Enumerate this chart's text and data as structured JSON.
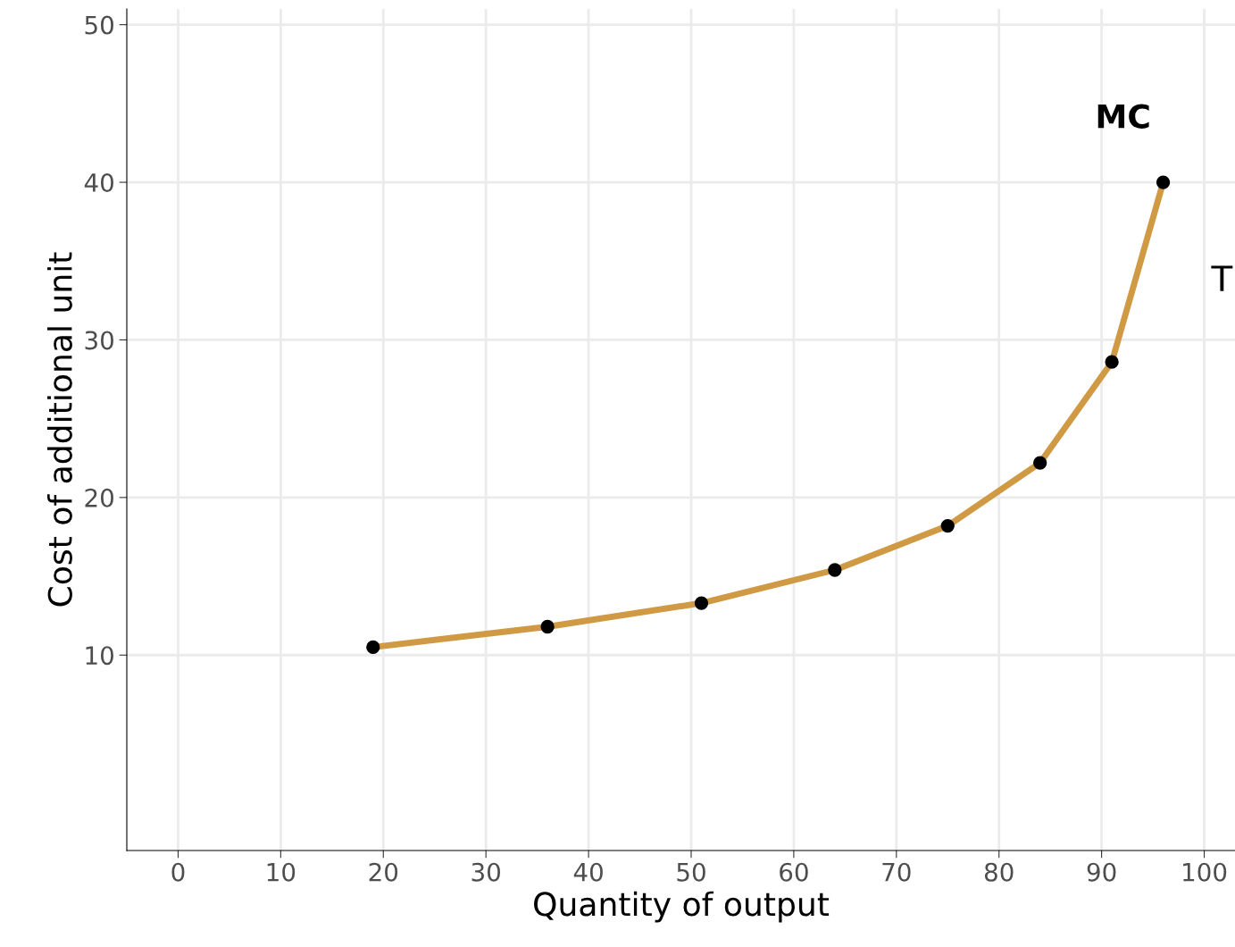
{
  "chart_data": {
    "type": "line",
    "xlabel": "Quantity of output",
    "ylabel": "Cost of additional unit",
    "x": [
      19,
      36,
      51,
      64,
      75,
      84,
      91,
      96
    ],
    "series": [
      {
        "color": "#d09a45",
        "values": [
          10.5,
          11.8,
          13.3,
          15.4,
          18.2,
          22.2,
          28.6,
          40
        ]
      }
    ],
    "marker": "circle",
    "line_style": "solid",
    "grid": true,
    "xlim": [
      -5,
      103
    ],
    "xticks": [
      0,
      10,
      20,
      30,
      40,
      50,
      60,
      70,
      80,
      90,
      100
    ],
    "ylim": [
      -2.4,
      51
    ],
    "yticks": [
      10,
      20,
      30,
      40,
      50
    ],
    "annotations": [
      "MC",
      "T"
    ]
  }
}
